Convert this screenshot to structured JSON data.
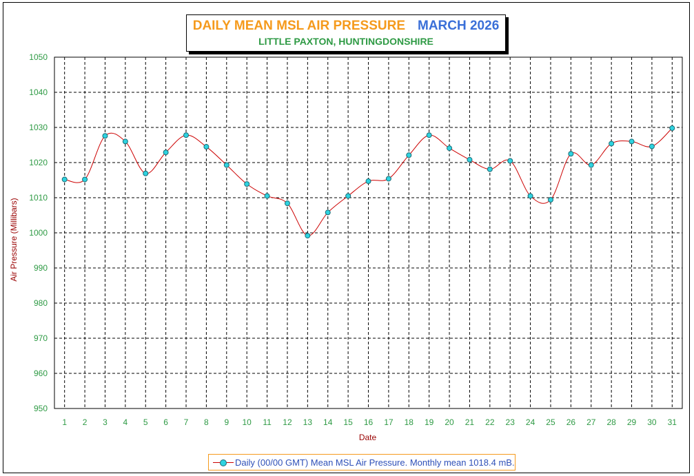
{
  "chart_data": {
    "type": "line",
    "title": "DAILY MEAN MSL AIR PRESSURE",
    "title_month": "MARCH 2026",
    "subtitle": "LITTLE PAXTON, HUNTINGDONSHIRE",
    "xlabel": "Date",
    "ylabel": "Air Pressure (Millibars)",
    "ylim": [
      950,
      1050
    ],
    "yticks": [
      950,
      960,
      970,
      980,
      990,
      1000,
      1010,
      1020,
      1030,
      1040,
      1050
    ],
    "x": [
      1,
      2,
      3,
      4,
      5,
      6,
      7,
      8,
      9,
      10,
      11,
      12,
      13,
      14,
      15,
      16,
      17,
      18,
      19,
      20,
      21,
      22,
      23,
      24,
      25,
      26,
      27,
      28,
      29,
      30,
      31
    ],
    "series": [
      {
        "name": "Daily (00/00 GMT) Mean MSL Air Pressure. Monthly mean 1018.4 mB.",
        "values": [
          1015.2,
          1015.2,
          1027.6,
          1026.0,
          1016.9,
          1022.9,
          1027.8,
          1024.5,
          1019.3,
          1013.9,
          1010.5,
          1008.4,
          999.2,
          1005.8,
          1010.5,
          1014.7,
          1015.4,
          1022.1,
          1027.8,
          1024.1,
          1020.8,
          1018.1,
          1020.5,
          1010.5,
          1009.4,
          1022.5,
          1019.3,
          1025.4,
          1026.0,
          1024.6,
          1029.8
        ]
      }
    ],
    "grid": true,
    "legend": "bottom-center",
    "colors": {
      "line": "#cc0000",
      "marker": "#2fd3e0",
      "marker_edge": "#1a6a74",
      "grid": "#000000",
      "tick_label": "#2e9a44",
      "axis_label": "#990000",
      "title": "#f59a1c",
      "title_month": "#3a6fd8",
      "subtitle": "#2e9a44",
      "legend_text": "#2e50b8",
      "legend_border": "#f59a1c"
    }
  }
}
